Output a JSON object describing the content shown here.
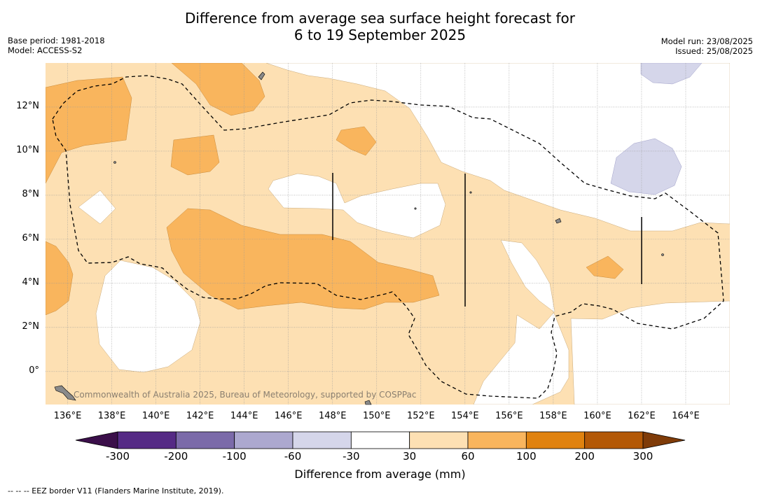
{
  "title": {
    "line1": "Difference from average sea surface height forecast for",
    "line2": "6 to 19 September 2025"
  },
  "meta_left": {
    "base_period": "Base period: 1981-2018",
    "model": "Model: ACCESS-S2"
  },
  "meta_right": {
    "model_run": "Model run: 23/08/2025",
    "issued": "Issued: 25/08/2025"
  },
  "watermark": "Commonwealth of Australia 2025, Bureau of Meteorology, supported by COSPPac",
  "axes": {
    "lon_ticks": [
      "136°E",
      "138°E",
      "140°E",
      "142°E",
      "144°E",
      "146°E",
      "148°E",
      "150°E",
      "152°E",
      "154°E",
      "156°E",
      "158°E",
      "160°E",
      "162°E",
      "164°E"
    ],
    "lat_ticks": [
      "12°N",
      "10°N",
      "8°N",
      "6°N",
      "4°N",
      "2°N",
      "0°"
    ],
    "lon_range": [
      135,
      166
    ],
    "lat_range": [
      -1.5,
      14
    ]
  },
  "colorbar": {
    "title": "Difference from average (mm)",
    "labels": [
      "-300",
      "-200",
      "-100",
      "-60",
      "-30",
      "30",
      "60",
      "100",
      "200",
      "300"
    ],
    "colors": [
      "#3b0f4a",
      "#552a85",
      "#7b6aa9",
      "#aca8cf",
      "#d5d6ea",
      "#ffffff",
      "#fde0b3",
      "#f9b55d",
      "#e0820f",
      "#b35806",
      "#7f3b08"
    ]
  },
  "footnote": "--  --  -- EEZ border V11 (Flanders Marine Institute, 2019).",
  "colors": {
    "land": "#8a8a8a",
    "grid": "#999999"
  }
}
